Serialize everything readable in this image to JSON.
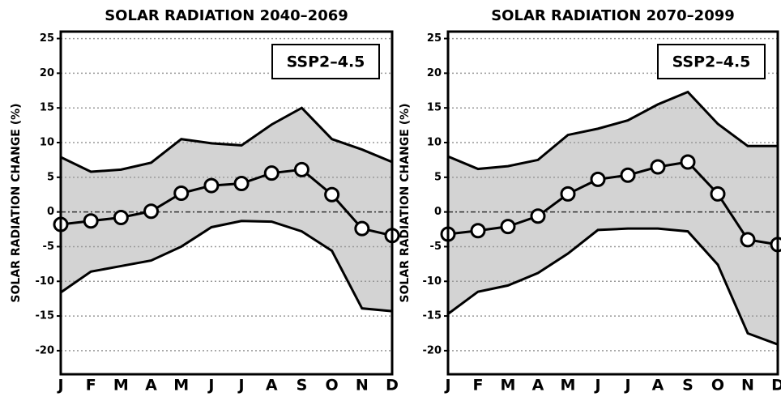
{
  "chart_data": [
    {
      "type": "line",
      "title": "SOLAR RADIATION 2040–2069",
      "ylabel": "SOLAR RADIATION CHANGE (%)",
      "annotation": "SSP2–4.5",
      "categories": [
        "J",
        "F",
        "M",
        "A",
        "M",
        "J",
        "J",
        "A",
        "S",
        "O",
        "N",
        "D"
      ],
      "series": [
        {
          "color": "#000000",
          "values": [
            -1.8,
            -1.3,
            -0.8,
            0.1,
            2.7,
            3.8,
            4.1,
            5.6,
            6.1,
            2.5,
            -2.4,
            -3.4
          ]
        }
      ],
      "band": {
        "color": "#d3d3d3",
        "upper": [
          7.9,
          5.8,
          6.1,
          7.1,
          10.5,
          9.9,
          9.6,
          12.6,
          15,
          10.5,
          9,
          7.2
        ],
        "lower": [
          -11.6,
          -8.6,
          -7.8,
          -7,
          -5,
          -2.2,
          -1.3,
          -1.4,
          -2.8,
          -5.6,
          -13.9,
          -14.3
        ]
      },
      "ylim": [
        -23.4,
        26
      ],
      "yticks": [
        -20,
        -15,
        -10,
        -5,
        0,
        5,
        10,
        15,
        20,
        25
      ],
      "grid": true
    },
    {
      "type": "line",
      "title": "SOLAR RADIATION 2070–2099",
      "ylabel": "SOLAR RADIATION CHANGE (%)",
      "annotation": "SSP2–4.5",
      "categories": [
        "J",
        "F",
        "M",
        "A",
        "M",
        "J",
        "J",
        "A",
        "S",
        "O",
        "N",
        "D"
      ],
      "series": [
        {
          "color": "#000000",
          "values": [
            -3.2,
            -2.7,
            -2.1,
            -0.6,
            2.6,
            4.7,
            5.3,
            6.5,
            7.2,
            2.6,
            -4,
            -4.7
          ]
        }
      ],
      "band": {
        "color": "#d3d3d3",
        "upper": [
          8,
          6.2,
          6.6,
          7.5,
          11.1,
          12,
          13.2,
          15.5,
          17.3,
          12.7,
          9.5,
          9.5
        ],
        "lower": [
          -14.7,
          -11.5,
          -10.6,
          -8.8,
          -6,
          -2.6,
          -2.4,
          -2.4,
          -2.8,
          -7.6,
          -17.5,
          -19.1
        ]
      },
      "ylim": [
        -23.4,
        26
      ],
      "yticks": [
        -20,
        -15,
        -10,
        -5,
        0,
        5,
        10,
        15,
        20,
        25
      ],
      "grid": true
    }
  ]
}
